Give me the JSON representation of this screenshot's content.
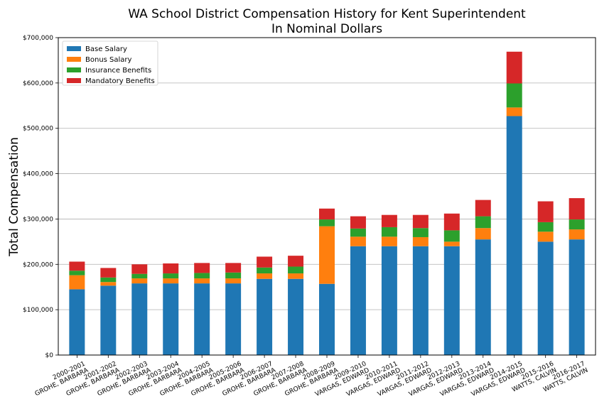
{
  "chart_data": {
    "type": "bar",
    "stacked": true,
    "title": "WA School District Compensation History for Kent Superintendent",
    "subtitle": "In Nominal Dollars",
    "xlabel": "",
    "ylabel": "Total Compensation",
    "ylim": [
      0,
      700000
    ],
    "yticks": [
      0,
      100000,
      200000,
      300000,
      400000,
      500000,
      600000,
      700000
    ],
    "ytick_labels": [
      "$0",
      "$100,000",
      "$200,000",
      "$300,000",
      "$400,000",
      "$500,000",
      "$600,000",
      "$700,000"
    ],
    "grid": "horizontal",
    "legend_position": "top-left",
    "categories": [
      "2000-2001\nGROHE, BARBARA",
      "2001-2002\nGROHE, BARBARA",
      "2002-2003\nGROHE, BARBARA",
      "2003-2004\nGROHE, BARBARA",
      "2004-2005\nGROHE, BARBARA",
      "2005-2006\nGROHE, BARBARA",
      "2006-2007\nGROHE, BARBARA",
      "2007-2008\nGROHE, BARBARA",
      "2008-2009\nGROHE, BARBARA",
      "2009-2010\nVARGAS, EDWARD",
      "2010-2011\nVARGAS, EDWARD",
      "2011-2012\nVARGAS, EDWARD",
      "2012-2013\nVARGAS, EDWARD",
      "2013-2014\nVARGAS, EDWARD",
      "2014-2015\nVARGAS, EDWARD",
      "2015-2016\nWATTS, CALVIN",
      "2016-2017\nWATTS, CALVIN"
    ],
    "series": [
      {
        "name": "Base Salary",
        "color": "#1f77b4",
        "values": [
          145000,
          153000,
          158000,
          158000,
          158000,
          158000,
          168000,
          168000,
          157000,
          240000,
          240000,
          240000,
          240000,
          255000,
          527000,
          250000,
          255000
        ]
      },
      {
        "name": "Bonus Salary",
        "color": "#ff7f0e",
        "values": [
          31000,
          8000,
          11000,
          11000,
          11000,
          11000,
          12000,
          12000,
          127000,
          21000,
          21000,
          20000,
          10000,
          25000,
          19000,
          22000,
          22000
        ]
      },
      {
        "name": "Insurance Benefits",
        "color": "#2ca02c",
        "values": [
          10000,
          10000,
          10000,
          11000,
          12000,
          13000,
          13000,
          15000,
          15000,
          18000,
          21000,
          20000,
          25000,
          26000,
          53000,
          21000,
          22000
        ]
      },
      {
        "name": "Mandatory Benefits",
        "color": "#d62728",
        "values": [
          20000,
          21000,
          21000,
          22000,
          22000,
          21000,
          24000,
          24000,
          24000,
          27000,
          27000,
          29000,
          37000,
          36000,
          70000,
          46000,
          47000
        ]
      }
    ]
  }
}
